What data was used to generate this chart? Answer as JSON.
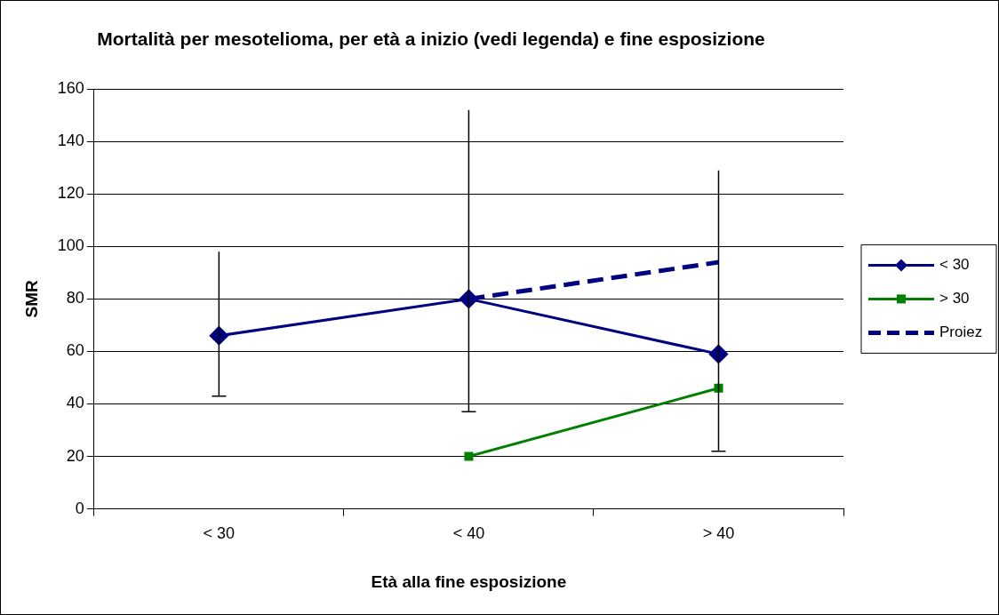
{
  "chart_data": {
    "type": "line",
    "title": "Mortalità per mesotelioma, per età a inizio (vedi legenda) e fine esposizione",
    "xlabel": "Età alla fine esposizione",
    "ylabel": "SMR",
    "categories": [
      "< 30",
      "< 40",
      "> 40"
    ],
    "series": [
      {
        "name": "< 30",
        "color": "#000080",
        "values": [
          66,
          80,
          59
        ],
        "marker": "diamond",
        "line_style": "solid",
        "errors": [
          [
            43,
            98
          ],
          [
            37,
            152
          ],
          [
            22,
            129
          ]
        ]
      },
      {
        "name": "> 30",
        "color": "#008000",
        "values": [
          null,
          20,
          46
        ],
        "marker": "square",
        "line_style": "solid"
      },
      {
        "name": "Proiez",
        "color": "#000080",
        "values": [
          null,
          80,
          94
        ],
        "marker": "none",
        "line_style": "dashed"
      }
    ],
    "ylim": [
      0,
      160
    ],
    "yticks": [
      0,
      20,
      40,
      60,
      80,
      100,
      120,
      140,
      160
    ],
    "grid": "y",
    "legend": "right"
  }
}
